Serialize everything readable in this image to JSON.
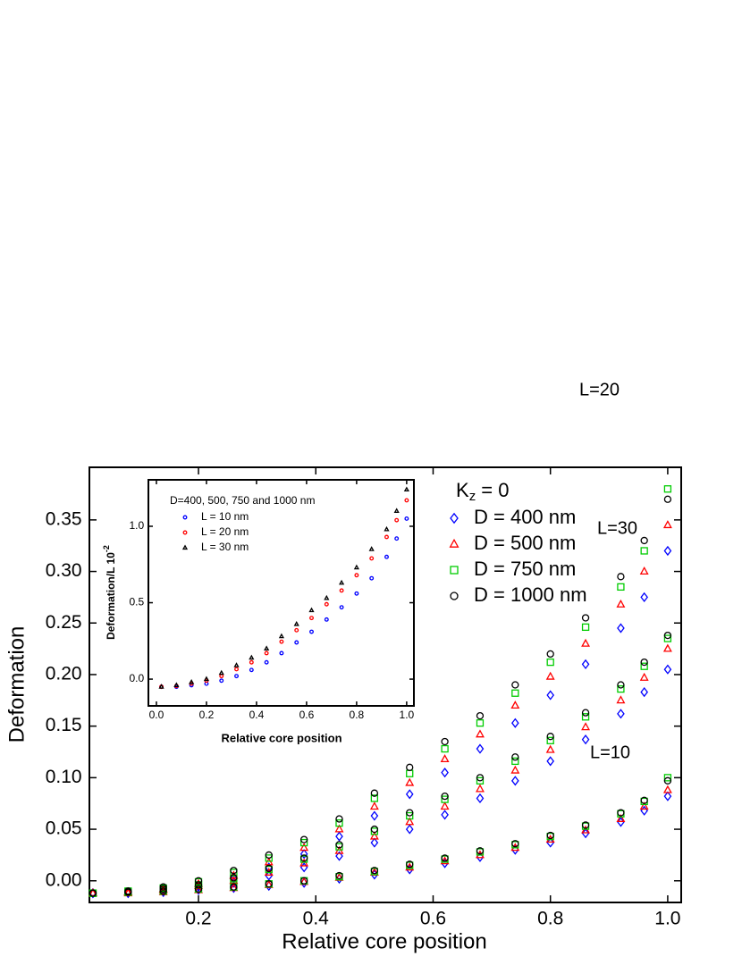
{
  "chart_data": {
    "type": "scatter",
    "xlabel": "Relative core position",
    "ylabel": "Deformation",
    "xlim": [
      0.014,
      1.023
    ],
    "ylim": [
      -0.021,
      0.401
    ],
    "xticks": [
      0.2,
      0.4,
      0.6,
      0.8,
      {
        "value": 1,
        "label": "1.0"
      }
    ],
    "yticks": [
      {
        "value": 0,
        "label": "0.00"
      },
      {
        "value": 0.05,
        "label": "0.05"
      },
      {
        "value": 0.1,
        "label": "0.10"
      },
      {
        "value": 0.15,
        "label": "0.15"
      },
      {
        "value": 0.2,
        "label": "0.20"
      },
      {
        "value": 0.25,
        "label": "0.25"
      },
      {
        "value": 0.3,
        "label": "0.30"
      },
      {
        "value": 0.35,
        "label": "0.35"
      }
    ],
    "legend_title": {
      "main": "K",
      "sub": "z",
      "rest": " = 0"
    },
    "groups": [
      "L=30",
      "L=20",
      "L=10"
    ],
    "x": [
      0.02,
      0.08,
      0.14,
      0.2,
      0.26,
      0.32,
      0.38,
      0.44,
      0.5,
      0.56,
      0.62,
      0.68,
      0.74,
      0.8,
      0.86,
      0.92,
      0.96,
      1.0
    ],
    "series": [
      {
        "name": "D = 400 nm",
        "color": "#0000ff",
        "marker": "diamond",
        "values": [
          [
            -0.012,
            -0.011,
            -0.009,
            -0.005,
            0.002,
            0.013,
            0.026,
            0.043,
            0.063,
            0.084,
            0.105,
            0.128,
            0.153,
            0.18,
            0.21,
            0.245,
            0.275,
            0.32
          ],
          [
            -0.012,
            -0.012,
            -0.01,
            -0.006,
            -0.002,
            0.005,
            0.013,
            0.024,
            0.037,
            0.05,
            0.064,
            0.08,
            0.097,
            0.116,
            0.137,
            0.162,
            0.183,
            0.205
          ],
          [
            -0.012,
            -0.012,
            -0.011,
            -0.009,
            -0.007,
            -0.005,
            -0.002,
            0.002,
            0.006,
            0.011,
            0.017,
            0.023,
            0.03,
            0.037,
            0.046,
            0.057,
            0.068,
            0.082
          ]
        ]
      },
      {
        "name": "D = 500 nm",
        "color": "#ff0000",
        "marker": "triangle",
        "values": [
          [
            -0.012,
            -0.011,
            -0.008,
            -0.003,
            0.005,
            0.018,
            0.032,
            0.05,
            0.072,
            0.095,
            0.118,
            0.142,
            0.17,
            0.198,
            0.23,
            0.268,
            0.3,
            0.345
          ],
          [
            -0.012,
            -0.011,
            -0.009,
            -0.005,
            0.0,
            0.008,
            0.017,
            0.029,
            0.043,
            0.057,
            0.072,
            0.089,
            0.107,
            0.127,
            0.149,
            0.175,
            0.197,
            0.225
          ],
          [
            -0.012,
            -0.012,
            -0.011,
            -0.009,
            -0.007,
            -0.004,
            -0.001,
            0.003,
            0.008,
            0.013,
            0.019,
            0.025,
            0.032,
            0.04,
            0.049,
            0.06,
            0.072,
            0.088
          ]
        ]
      },
      {
        "name": "D = 750 nm",
        "color": "#00cc00",
        "marker": "square",
        "values": [
          [
            -0.012,
            -0.01,
            -0.007,
            -0.001,
            0.008,
            0.022,
            0.037,
            0.056,
            0.08,
            0.104,
            0.128,
            0.153,
            0.182,
            0.212,
            0.246,
            0.285,
            0.32,
            0.38
          ],
          [
            -0.012,
            -0.011,
            -0.008,
            -0.004,
            0.002,
            0.011,
            0.021,
            0.033,
            0.048,
            0.063,
            0.079,
            0.097,
            0.116,
            0.136,
            0.159,
            0.186,
            0.208,
            0.235
          ],
          [
            -0.012,
            -0.011,
            -0.01,
            -0.008,
            -0.006,
            -0.003,
            0.0,
            0.004,
            0.009,
            0.015,
            0.021,
            0.028,
            0.035,
            0.043,
            0.053,
            0.065,
            0.077,
            0.1
          ]
        ]
      },
      {
        "name": "D = 1000 nm",
        "color": "#000000",
        "marker": "circle",
        "values": [
          [
            -0.012,
            -0.01,
            -0.006,
            0.0,
            0.01,
            0.025,
            0.04,
            0.06,
            0.085,
            0.11,
            0.135,
            0.16,
            0.19,
            0.22,
            0.255,
            0.295,
            0.33,
            0.37
          ],
          [
            -0.012,
            -0.011,
            -0.008,
            -0.004,
            0.003,
            0.012,
            0.022,
            0.035,
            0.05,
            0.066,
            0.082,
            0.1,
            0.12,
            0.14,
            0.163,
            0.19,
            0.212,
            0.238
          ],
          [
            -0.012,
            -0.011,
            -0.01,
            -0.008,
            -0.006,
            -0.003,
            0.0,
            0.005,
            0.01,
            0.016,
            0.022,
            0.029,
            0.036,
            0.044,
            0.054,
            0.066,
            0.078,
            0.097
          ]
        ]
      }
    ],
    "inset": {
      "title": "D=400, 500, 750 and 1000 nm",
      "xlabel": "Relative core position",
      "ylabel": {
        "main": "Deformation/L 10",
        "sup": "-2"
      },
      "xlim": [
        -0.032,
        1.029
      ],
      "ylim": [
        -0.175,
        1.304
      ],
      "xticks": [
        {
          "value": 0,
          "label": "0.0"
        },
        0.2,
        0.4,
        0.6,
        0.8,
        {
          "value": 1,
          "label": "1.0"
        }
      ],
      "yticks": [
        {
          "value": 0,
          "label": "0.0"
        },
        0.5,
        {
          "value": 1,
          "label": "1.0"
        }
      ],
      "x": [
        0.02,
        0.08,
        0.14,
        0.2,
        0.26,
        0.32,
        0.38,
        0.44,
        0.5,
        0.56,
        0.62,
        0.68,
        0.74,
        0.8,
        0.86,
        0.92,
        0.96,
        1.0
      ],
      "series": [
        {
          "name": "L = 10 nm",
          "color": "#0000ff",
          "marker": "circle",
          "values": [
            -0.05,
            -0.05,
            -0.04,
            -0.03,
            -0.01,
            0.02,
            0.06,
            0.11,
            0.17,
            0.24,
            0.31,
            0.39,
            0.47,
            0.56,
            0.66,
            0.8,
            0.92,
            1.05
          ]
        },
        {
          "name": "L = 20 nm",
          "color": "#ff0000",
          "marker": "circle",
          "values": [
            -0.05,
            -0.045,
            -0.03,
            -0.01,
            0.02,
            0.065,
            0.11,
            0.17,
            0.245,
            0.32,
            0.4,
            0.49,
            0.58,
            0.68,
            0.79,
            0.93,
            1.04,
            1.17
          ]
        },
        {
          "name": "L = 30 nm",
          "color": "#000000",
          "marker": "triangle",
          "values": [
            -0.05,
            -0.04,
            -0.02,
            0.0,
            0.04,
            0.09,
            0.14,
            0.2,
            0.28,
            0.36,
            0.45,
            0.53,
            0.63,
            0.73,
            0.85,
            0.98,
            1.1,
            1.24
          ]
        }
      ]
    }
  }
}
